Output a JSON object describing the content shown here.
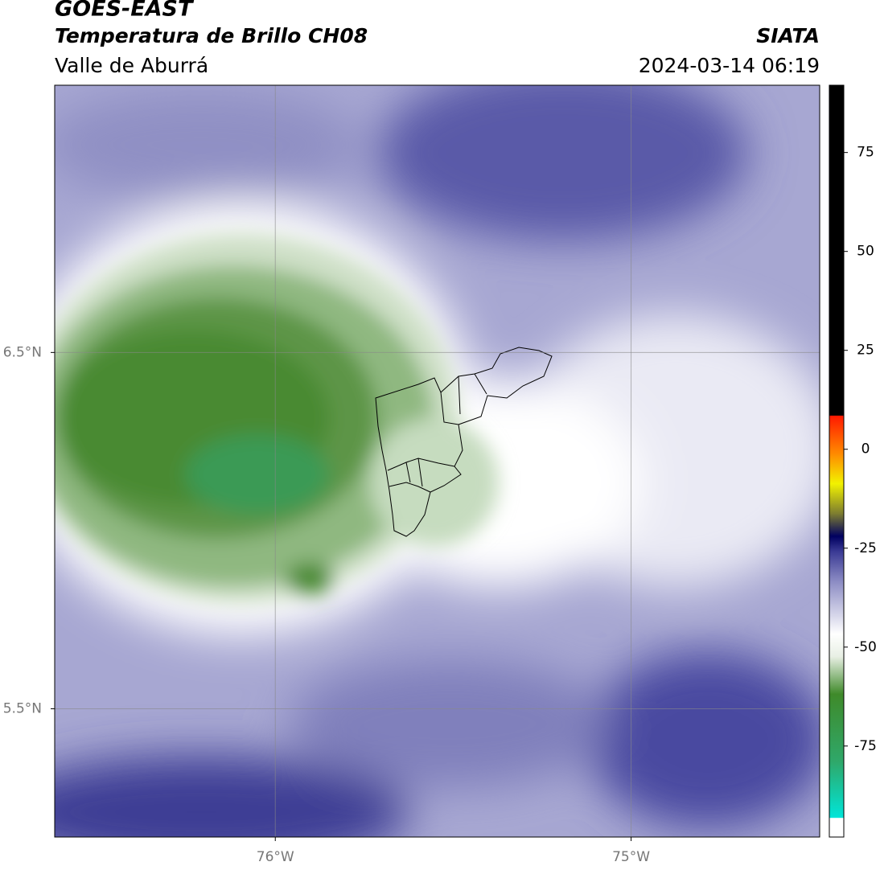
{
  "header": {
    "title": "GOES-EAST",
    "subtitle": "Temperatura de Brillo CH08",
    "region": "Valle de Aburrá",
    "source": "SIATA",
    "datetime": "2024-03-14 06:19"
  },
  "map": {
    "xlim": [
      -76.62,
      -74.47
    ],
    "ylim": [
      5.14,
      7.25
    ],
    "xticks": [
      {
        "value": -76,
        "label": "76°W"
      },
      {
        "value": -75,
        "label": "75°W"
      }
    ],
    "yticks": [
      {
        "value": 6.5,
        "label": "6.5°N"
      },
      {
        "value": 5.5,
        "label": "5.5°N"
      }
    ],
    "grid": true
  },
  "colorbar": {
    "lim": [
      -98,
      92
    ],
    "ticks": [
      75,
      50,
      25,
      0,
      -25,
      -50,
      -75
    ]
  }
}
